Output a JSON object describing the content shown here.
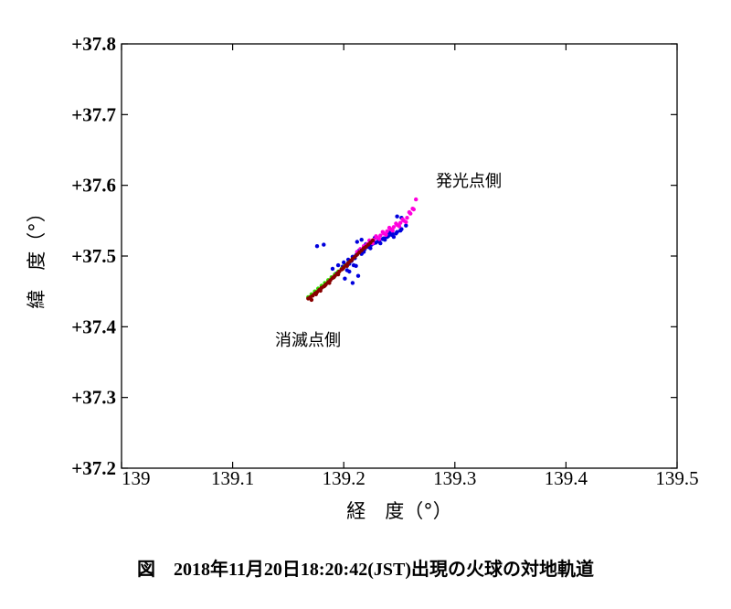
{
  "chart_data": {
    "type": "scatter",
    "title": "",
    "xlabel": "経　度（°）",
    "ylabel": "緯　度（°）",
    "xlim": [
      139.0,
      139.5
    ],
    "ylim": [
      37.2,
      37.8
    ],
    "xticks": [
      "139",
      "139.1",
      "139.2",
      "139.3",
      "139.4",
      "139.5"
    ],
    "yticks": [
      "+37.2",
      "+37.3",
      "+37.4",
      "+37.5",
      "+37.6",
      "+37.7",
      "+37.8"
    ],
    "grid": false,
    "annotations": [
      {
        "text": "発光点側",
        "x": 139.285,
        "y": 37.605
      },
      {
        "text": "消滅点側",
        "x": 139.14,
        "y": 37.385
      }
    ],
    "caption": "図　2018年11月20日18:20:42(JST)出現の火球の対地軌道",
    "series": [
      {
        "color": "#0000dd",
        "x": [
          139.19,
          139.195,
          139.2,
          139.204,
          139.208,
          139.212,
          139.216,
          139.219,
          139.222,
          139.225,
          139.229,
          139.232,
          139.236,
          139.24,
          139.244,
          139.248,
          139.252,
          139.256,
          139.199,
          139.203,
          139.207,
          139.211,
          139.215,
          139.218,
          139.221,
          139.212,
          139.216,
          139.22,
          139.209,
          139.213,
          139.205,
          139.21,
          139.214,
          139.218,
          139.223,
          139.227,
          139.231,
          139.235,
          139.239,
          139.243,
          139.247,
          139.251,
          139.224,
          139.228,
          139.233,
          139.237,
          139.241,
          139.245
        ],
        "y": [
          37.482,
          37.487,
          37.491,
          37.495,
          37.499,
          37.503,
          37.507,
          37.51,
          37.513,
          37.516,
          37.519,
          37.522,
          37.525,
          37.528,
          37.531,
          37.534,
          37.538,
          37.543,
          37.485,
          37.48,
          37.493,
          37.501,
          37.505,
          37.511,
          37.514,
          37.52,
          37.523,
          37.517,
          37.487,
          37.472,
          37.489,
          37.497,
          37.508,
          37.506,
          37.515,
          37.518,
          37.521,
          37.524,
          37.527,
          37.53,
          37.532,
          37.536,
          37.511,
          37.526,
          37.518,
          37.523,
          37.533,
          37.527
        ]
      },
      {
        "color": "#0000dd",
        "x": [
          139.176,
          139.182,
          139.193,
          139.205,
          139.211,
          139.216,
          139.201,
          139.208,
          139.248,
          139.252
        ],
        "y": [
          37.514,
          37.516,
          37.475,
          37.478,
          37.486,
          37.503,
          37.468,
          37.462,
          37.556,
          37.554
        ]
      },
      {
        "color": "#33dd00",
        "x": [
          139.168,
          139.171,
          139.174,
          139.177,
          139.18,
          139.183,
          139.186,
          139.189,
          139.192,
          139.195,
          139.198,
          139.201,
          139.204
        ],
        "y": [
          37.442,
          37.446,
          37.45,
          37.454,
          37.458,
          37.462,
          37.466,
          37.47,
          37.474,
          37.478,
          37.482,
          37.486,
          37.49
        ]
      },
      {
        "color": "#ff00dd",
        "x": [
          139.215,
          139.218,
          139.221,
          139.224,
          139.227,
          139.23,
          139.233,
          139.236,
          139.239,
          139.242,
          139.245,
          139.248,
          139.251,
          139.254,
          139.257,
          139.26,
          139.263,
          139.223,
          139.229,
          139.235,
          139.241,
          139.247,
          139.253,
          139.259,
          139.212,
          139.219,
          139.226,
          139.232,
          139.238,
          139.244,
          139.25,
          139.256,
          139.262,
          139.265
        ],
        "y": [
          37.51,
          37.514,
          37.517,
          37.52,
          37.523,
          37.526,
          37.529,
          37.532,
          37.535,
          37.538,
          37.541,
          37.544,
          37.547,
          37.55,
          37.554,
          37.56,
          37.566,
          37.522,
          37.528,
          37.534,
          37.54,
          37.546,
          37.552,
          37.562,
          37.506,
          37.512,
          37.518,
          37.524,
          37.53,
          37.536,
          37.542,
          37.548,
          37.567,
          37.58
        ]
      },
      {
        "color": "#880000",
        "x": [
          139.168,
          139.17,
          139.172,
          139.174,
          139.176,
          139.178,
          139.18,
          139.182,
          139.184,
          139.186,
          139.188,
          139.19,
          139.192,
          139.194,
          139.196,
          139.198,
          139.2,
          139.202,
          139.204,
          139.206,
          139.208,
          139.21,
          139.212,
          139.214,
          139.216,
          139.218,
          139.22,
          139.222,
          139.224,
          139.226,
          139.171,
          139.175,
          139.179,
          139.183,
          139.187,
          139.191,
          139.195,
          139.199,
          139.203,
          139.207
        ],
        "y": [
          37.44,
          37.442,
          37.444,
          37.447,
          37.449,
          37.452,
          37.455,
          37.457,
          37.46,
          37.463,
          37.466,
          37.469,
          37.472,
          37.475,
          37.478,
          37.481,
          37.484,
          37.487,
          37.49,
          37.493,
          37.496,
          37.499,
          37.502,
          37.505,
          37.508,
          37.511,
          37.513,
          37.516,
          37.519,
          37.522,
          37.438,
          37.446,
          37.451,
          37.458,
          37.462,
          37.47,
          37.474,
          37.482,
          37.486,
          37.494
        ]
      }
    ]
  }
}
